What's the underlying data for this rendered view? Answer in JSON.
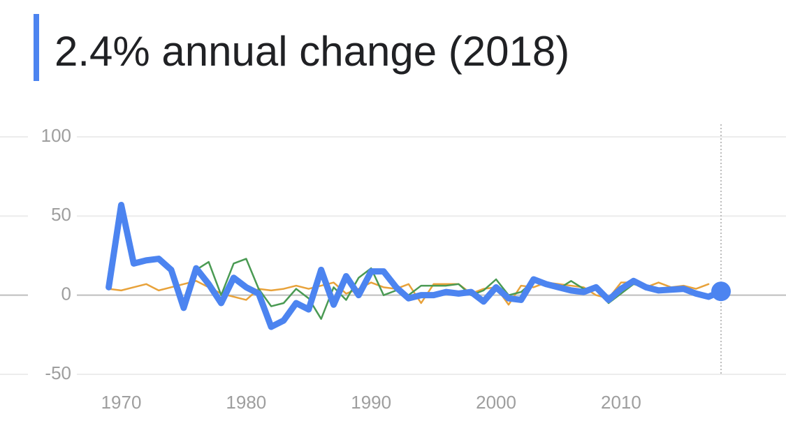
{
  "chart_data": {
    "type": "line",
    "title": "2.4% annual change (2018)",
    "x": [
      1969,
      1970,
      1971,
      1972,
      1973,
      1974,
      1975,
      1976,
      1977,
      1978,
      1979,
      1980,
      1981,
      1982,
      1983,
      1984,
      1985,
      1986,
      1987,
      1988,
      1989,
      1990,
      1991,
      1992,
      1993,
      1994,
      1995,
      1996,
      1997,
      1998,
      1999,
      2000,
      2001,
      2002,
      2003,
      2004,
      2005,
      2006,
      2007,
      2008,
      2009,
      2010,
      2011,
      2012,
      2013,
      2014,
      2015,
      2016,
      2017,
      2018
    ],
    "series": [
      {
        "color": "#e8a23a",
        "values": [
          4,
          3,
          5,
          7,
          3,
          5,
          7,
          9,
          5,
          1,
          -1,
          -3,
          4,
          3,
          4,
          6,
          4,
          6,
          8,
          1,
          4,
          8,
          5,
          4,
          7,
          -5,
          7,
          7,
          7,
          1,
          4,
          5,
          -6,
          6,
          5,
          8,
          7,
          6,
          5,
          0,
          -2,
          8,
          8,
          5,
          8,
          5,
          6,
          4,
          7,
          null
        ]
      },
      {
        "color": "#4a9a53",
        "values": [
          null,
          null,
          null,
          null,
          null,
          null,
          null,
          16,
          21,
          0,
          20,
          23,
          4,
          -7,
          -5,
          4,
          -2,
          -15,
          5,
          -3,
          11,
          17,
          0,
          3,
          0,
          6,
          6,
          6,
          7,
          0,
          3,
          10,
          0,
          2,
          9,
          8,
          4,
          9,
          4,
          5,
          -5,
          1,
          7,
          5,
          3,
          4,
          4,
          2,
          0,
          null
        ]
      },
      {
        "color": "#4c84f0",
        "values": [
          5,
          57,
          20,
          22,
          23,
          16,
          -8,
          17,
          7,
          -5,
          11,
          5,
          1,
          -20,
          -16,
          -5,
          -9,
          16,
          -6,
          12,
          0,
          15,
          15,
          5,
          -2,
          0,
          0,
          2,
          1,
          2,
          -4,
          5,
          -2,
          -3,
          10,
          7,
          5,
          3,
          2,
          5,
          -3,
          4,
          9,
          5,
          3,
          3.5,
          4,
          1,
          -1,
          2.4
        ]
      }
    ],
    "xlim": [
      1960.3,
      2023.2
    ],
    "ylim": [
      -50,
      100
    ],
    "xticks": [
      1970,
      1980,
      1990,
      2000,
      2010
    ],
    "yticks": [
      -50,
      0,
      50,
      100
    ],
    "grid": true
  }
}
